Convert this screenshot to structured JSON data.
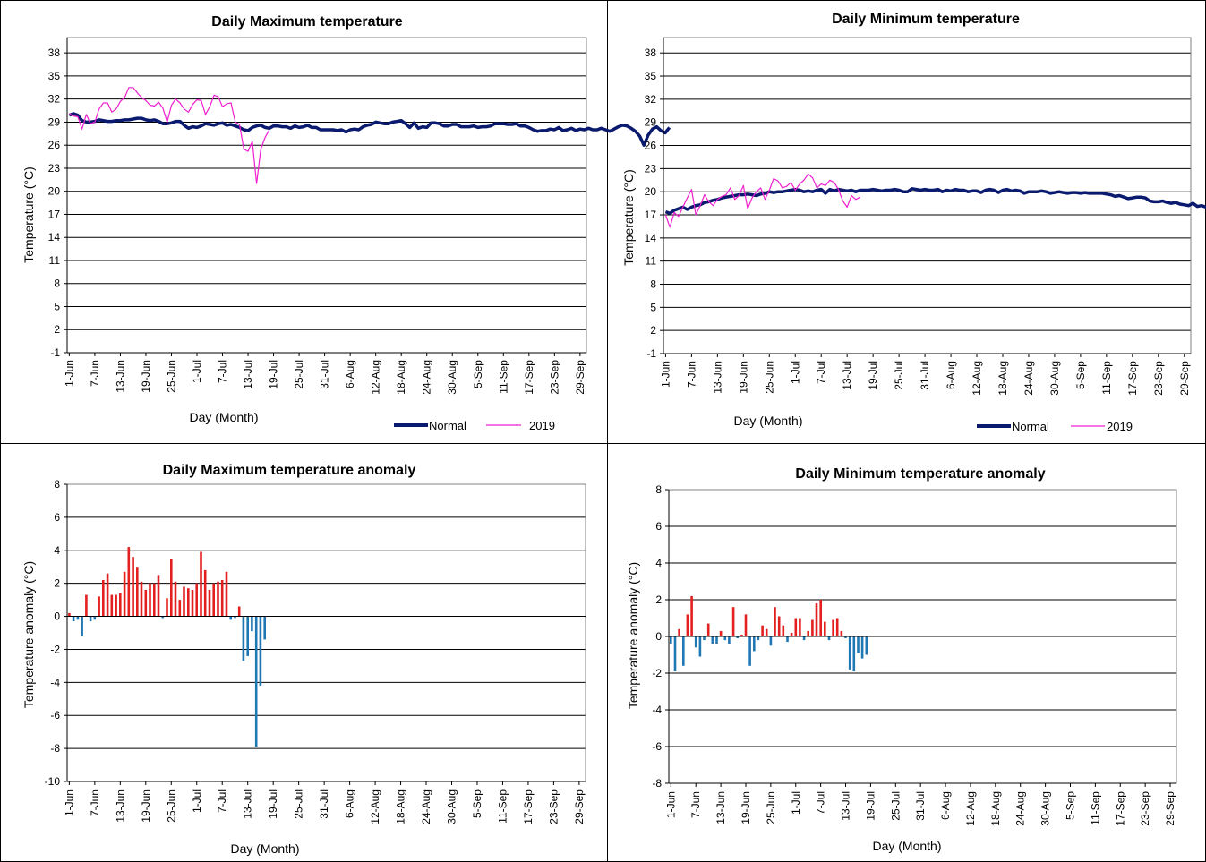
{
  "chart_data": [
    {
      "type": "line",
      "title": "Daily Maximum temperature",
      "xlabel": "Day (Month)",
      "ylabel": "Temperature  (°C)",
      "ylim": [
        -1,
        40
      ],
      "yticks": [
        -1,
        2,
        5,
        8,
        11,
        14,
        17,
        20,
        23,
        26,
        29,
        32,
        35,
        38
      ],
      "grid": true,
      "legend": "bottom-right",
      "x_ticklabels": [
        "1-Jun",
        "7-Jun",
        "13-Jun",
        "19-Jun",
        "25-Jun",
        "1-Jul",
        "7-Jul",
        "13-Jul",
        "19-Jul",
        "25-Jul",
        "31-Jul",
        "6-Aug",
        "12-Aug",
        "18-Aug",
        "24-Aug",
        "30-Aug",
        "5-Sep",
        "11-Sep",
        "17-Sep",
        "23-Sep",
        "29-Sep"
      ],
      "series": [
        {
          "name": "Normal",
          "color": "#0a1a6e",
          "values": [
            29.9,
            30.1,
            29.9,
            29.2,
            29.0,
            29.0,
            29.1,
            29.3,
            29.2,
            29.1,
            29.1,
            29.2,
            29.2,
            29.3,
            29.3,
            29.4,
            29.5,
            29.5,
            29.3,
            29.2,
            29.3,
            29.1,
            28.8,
            28.8,
            28.9,
            29.1,
            29.1,
            28.6,
            28.2,
            28.4,
            28.3,
            28.5,
            28.8,
            28.7,
            28.6,
            28.8,
            28.9,
            28.6,
            28.7,
            28.5,
            28.3,
            28.0,
            27.9,
            28.3,
            28.5,
            28.6,
            28.3,
            28.2,
            28.5,
            28.5,
            28.4,
            28.4,
            28.2,
            28.5,
            28.3,
            28.4,
            28.6,
            28.3,
            28.3,
            28.0,
            28.0,
            28.0,
            28.0,
            27.9,
            28.0,
            27.7,
            28.0,
            28.1,
            28.0,
            28.4,
            28.6,
            28.7,
            29.0,
            28.9,
            28.8,
            28.8,
            29.0,
            29.1,
            29.2,
            28.8,
            28.3,
            28.9,
            28.2,
            28.4,
            28.3,
            28.9,
            28.9,
            28.8,
            28.5,
            28.5,
            28.7,
            28.7,
            28.4,
            28.4,
            28.4,
            28.5,
            28.3,
            28.4,
            28.4,
            28.5,
            28.8,
            28.8,
            28.8,
            28.7,
            28.7,
            28.8,
            28.5,
            28.5,
            28.3,
            28.0,
            27.8,
            27.9,
            27.9,
            28.1,
            28.0,
            28.3,
            27.9,
            28.0,
            28.2,
            27.9,
            28.1,
            28.0,
            28.2,
            28.0,
            28.0,
            28.2,
            28.0,
            27.8,
            28.1,
            28.4,
            28.6,
            28.5,
            28.2,
            27.8,
            27.2,
            26.0,
            27.3,
            28.1,
            28.4,
            27.9,
            27.6,
            28.3
          ]
        },
        {
          "name": "2019",
          "color": "#ee1fcf",
          "values": [
            30.1,
            29.8,
            29.7,
            28.1,
            30.0,
            28.8,
            29.0,
            30.7,
            31.5,
            31.5,
            30.3,
            30.7,
            31.7,
            32.2,
            33.5,
            33.5,
            32.8,
            32.2,
            31.8,
            31.2,
            31.1,
            31.6,
            30.8,
            29.0,
            31.2,
            32.0,
            31.5,
            30.7,
            30.3,
            31.3,
            31.9,
            31.8,
            30.0,
            31.0,
            32.5,
            32.3,
            31.0,
            31.4,
            31.5,
            29.0,
            28.7,
            25.5,
            25.2,
            26.5,
            21.0,
            25.5,
            27.0,
            28.0
          ]
        }
      ]
    },
    {
      "type": "line",
      "title": "Daily Minimum temperature",
      "xlabel": "Day (Month)",
      "ylabel": "Temperature  (°C)",
      "ylim": [
        -1,
        40
      ],
      "yticks": [
        -1,
        2,
        5,
        8,
        11,
        14,
        17,
        20,
        23,
        26,
        29,
        32,
        35,
        38
      ],
      "grid": true,
      "legend": "bottom-right",
      "x_ticklabels": [
        "1-Jun",
        "7-Jun",
        "13-Jun",
        "19-Jun",
        "25-Jun",
        "1-Jul",
        "7-Jul",
        "13-Jul",
        "19-Jul",
        "25-Jul",
        "31-Jul",
        "6-Aug",
        "12-Aug",
        "18-Aug",
        "24-Aug",
        "30-Aug",
        "5-Sep",
        "11-Sep",
        "17-Sep",
        "23-Sep",
        "29-Sep"
      ],
      "series": [
        {
          "name": "Normal",
          "color": "#0a1a6e",
          "values": [
            17.4,
            17.2,
            17.6,
            17.8,
            18.0,
            17.7,
            18.0,
            18.2,
            18.3,
            18.6,
            18.7,
            18.9,
            19.0,
            19.2,
            19.3,
            19.4,
            19.5,
            19.6,
            19.6,
            19.7,
            19.6,
            19.5,
            19.7,
            19.8,
            20.0,
            19.9,
            20.0,
            20.0,
            20.1,
            20.2,
            20.3,
            20.2,
            20.0,
            20.1,
            20.0,
            20.2,
            20.3,
            19.8,
            20.3,
            20.1,
            20.3,
            20.2,
            20.1,
            20.2,
            20.0,
            20.2,
            20.2,
            20.2,
            20.3,
            20.2,
            20.1,
            20.2,
            20.2,
            20.3,
            20.2,
            20.0,
            20.0,
            20.4,
            20.3,
            20.2,
            20.3,
            20.2,
            20.2,
            20.3,
            20.0,
            20.2,
            20.1,
            20.3,
            20.2,
            20.2,
            20.0,
            20.1,
            20.1,
            19.9,
            20.2,
            20.3,
            20.2,
            19.9,
            20.2,
            20.3,
            20.1,
            20.2,
            20.1,
            19.8,
            20.0,
            20.0,
            20.0,
            20.1,
            20.0,
            19.8,
            19.9,
            20.0,
            19.9,
            19.8,
            19.9,
            19.9,
            19.8,
            19.9,
            19.8,
            19.8,
            19.8,
            19.8,
            19.7,
            19.6,
            19.4,
            19.5,
            19.3,
            19.1,
            19.2,
            19.3,
            19.3,
            19.2,
            18.8,
            18.7,
            18.7,
            18.8,
            18.6,
            18.5,
            18.6,
            18.4,
            18.3,
            18.2,
            18.5,
            18.1,
            18.2,
            18.0,
            18.1,
            18.0,
            18.0,
            17.9,
            17.9,
            17.5,
            17.5,
            17.4,
            17.4,
            17.2,
            16.9,
            16.6
          ]
        },
        {
          "name": "2019",
          "color": "#ee1fcf",
          "values": [
            17.0,
            15.4,
            17.3,
            16.8,
            18.0,
            19.2,
            20.3,
            17.0,
            18.2,
            19.6,
            18.7,
            18.2,
            19.0,
            19.4,
            19.6,
            20.5,
            19.0,
            19.5,
            20.8,
            17.8,
            19.2,
            20.0,
            20.5,
            19.0,
            20.2,
            21.7,
            21.4,
            20.5,
            20.7,
            21.2,
            20.2,
            21.0,
            21.5,
            22.3,
            21.8,
            20.5,
            21.0,
            20.8,
            21.5,
            21.2,
            20.3,
            18.8,
            18.0,
            19.5,
            19.0,
            19.3
          ]
        }
      ]
    },
    {
      "type": "bar",
      "title": "Daily Maximum temperature anomaly",
      "xlabel": "Day (Month)",
      "ylabel": "Temperature  anomaly  (°C)",
      "ylim": [
        -10,
        8
      ],
      "yticks": [
        -10,
        -8,
        -6,
        -4,
        -2,
        0,
        2,
        4,
        6,
        8
      ],
      "grid": true,
      "x_ticklabels": [
        "1-Jun",
        "7-Jun",
        "13-Jun",
        "19-Jun",
        "25-Jun",
        "1-Jul",
        "7-Jul",
        "13-Jul",
        "19-Jul",
        "25-Jul",
        "31-Jul",
        "6-Aug",
        "12-Aug",
        "18-Aug",
        "24-Aug",
        "30-Aug",
        "5-Sep",
        "11-Sep",
        "17-Sep",
        "23-Sep",
        "29-Sep"
      ],
      "positive_color": "#e3201f",
      "negative_color": "#1f77b4",
      "values": [
        0.2,
        -0.3,
        -0.2,
        -1.2,
        1.3,
        -0.3,
        -0.2,
        1.2,
        2.2,
        2.6,
        1.3,
        1.3,
        1.4,
        2.7,
        4.2,
        3.6,
        3.0,
        2.1,
        1.6,
        2.0,
        2.0,
        2.5,
        -0.1,
        1.1,
        3.5,
        2.1,
        1.0,
        1.8,
        1.7,
        1.6,
        2.0,
        3.9,
        2.8,
        1.6,
        2.0,
        2.1,
        2.2,
        2.7,
        -0.2,
        -0.1,
        0.6,
        -2.7,
        -2.4,
        -0.9,
        -7.9,
        -4.2,
        -1.4
      ]
    },
    {
      "type": "bar",
      "title": "Daily Minimum temperature anomaly",
      "xlabel": "Day (Month)",
      "ylabel": "Temperature  anomaly  (°C)",
      "ylim": [
        -8,
        8
      ],
      "yticks": [
        -8,
        -6,
        -4,
        -2,
        0,
        2,
        4,
        6,
        8
      ],
      "grid": true,
      "x_ticklabels": [
        "1-Jun",
        "7-Jun",
        "13-Jun",
        "19-Jun",
        "25-Jun",
        "1-Jul",
        "7-Jul",
        "13-Jul",
        "19-Jul",
        "25-Jul",
        "31-Jul",
        "6-Aug",
        "12-Aug",
        "18-Aug",
        "24-Aug",
        "30-Aug",
        "5-Sep",
        "11-Sep",
        "17-Sep",
        "23-Sep",
        "29-Sep"
      ],
      "positive_color": "#e3201f",
      "negative_color": "#1f77b4",
      "values": [
        -0.4,
        -1.9,
        0.4,
        -1.6,
        1.2,
        2.2,
        -0.6,
        -1.1,
        -0.2,
        0.7,
        -0.4,
        -0.4,
        0.3,
        -0.2,
        -0.4,
        1.6,
        -0.1,
        0.1,
        1.2,
        -1.6,
        -0.8,
        -0.2,
        0.6,
        0.4,
        -0.5,
        1.6,
        1.1,
        0.6,
        -0.3,
        0.2,
        1.0,
        1.0,
        -0.2,
        0.3,
        0.9,
        1.8,
        2.0,
        0.8,
        -0.2,
        0.9,
        1.0,
        0.3,
        -0.1,
        -1.8,
        -1.9,
        -0.9,
        -1.2,
        -1.0
      ]
    }
  ]
}
